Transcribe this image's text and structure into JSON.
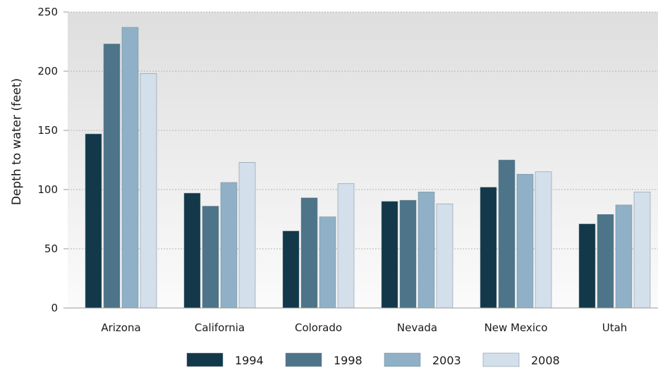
{
  "chart_data": {
    "type": "bar",
    "title": "",
    "xlabel": "",
    "ylabel": "Depth to water (feet)",
    "ylim": [
      0,
      250
    ],
    "yticks": [
      0,
      50,
      100,
      150,
      200,
      250
    ],
    "grid": true,
    "legend_position": "bottom",
    "categories": [
      "Arizona",
      "California",
      "Colorado",
      "Nevada",
      "New Mexico",
      "Utah"
    ],
    "series": [
      {
        "name": "1994",
        "color": "#12384a",
        "values": [
          147,
          97,
          65,
          90,
          102,
          71
        ]
      },
      {
        "name": "1998",
        "color": "#4d7488",
        "values": [
          223,
          86,
          93,
          91,
          125,
          79
        ]
      },
      {
        "name": "2003",
        "color": "#8fb0c6",
        "values": [
          237,
          106,
          77,
          98,
          113,
          87
        ]
      },
      {
        "name": "2008",
        "color": "#d3dfeb",
        "values": [
          198,
          123,
          105,
          88,
          115,
          98
        ]
      }
    ]
  }
}
